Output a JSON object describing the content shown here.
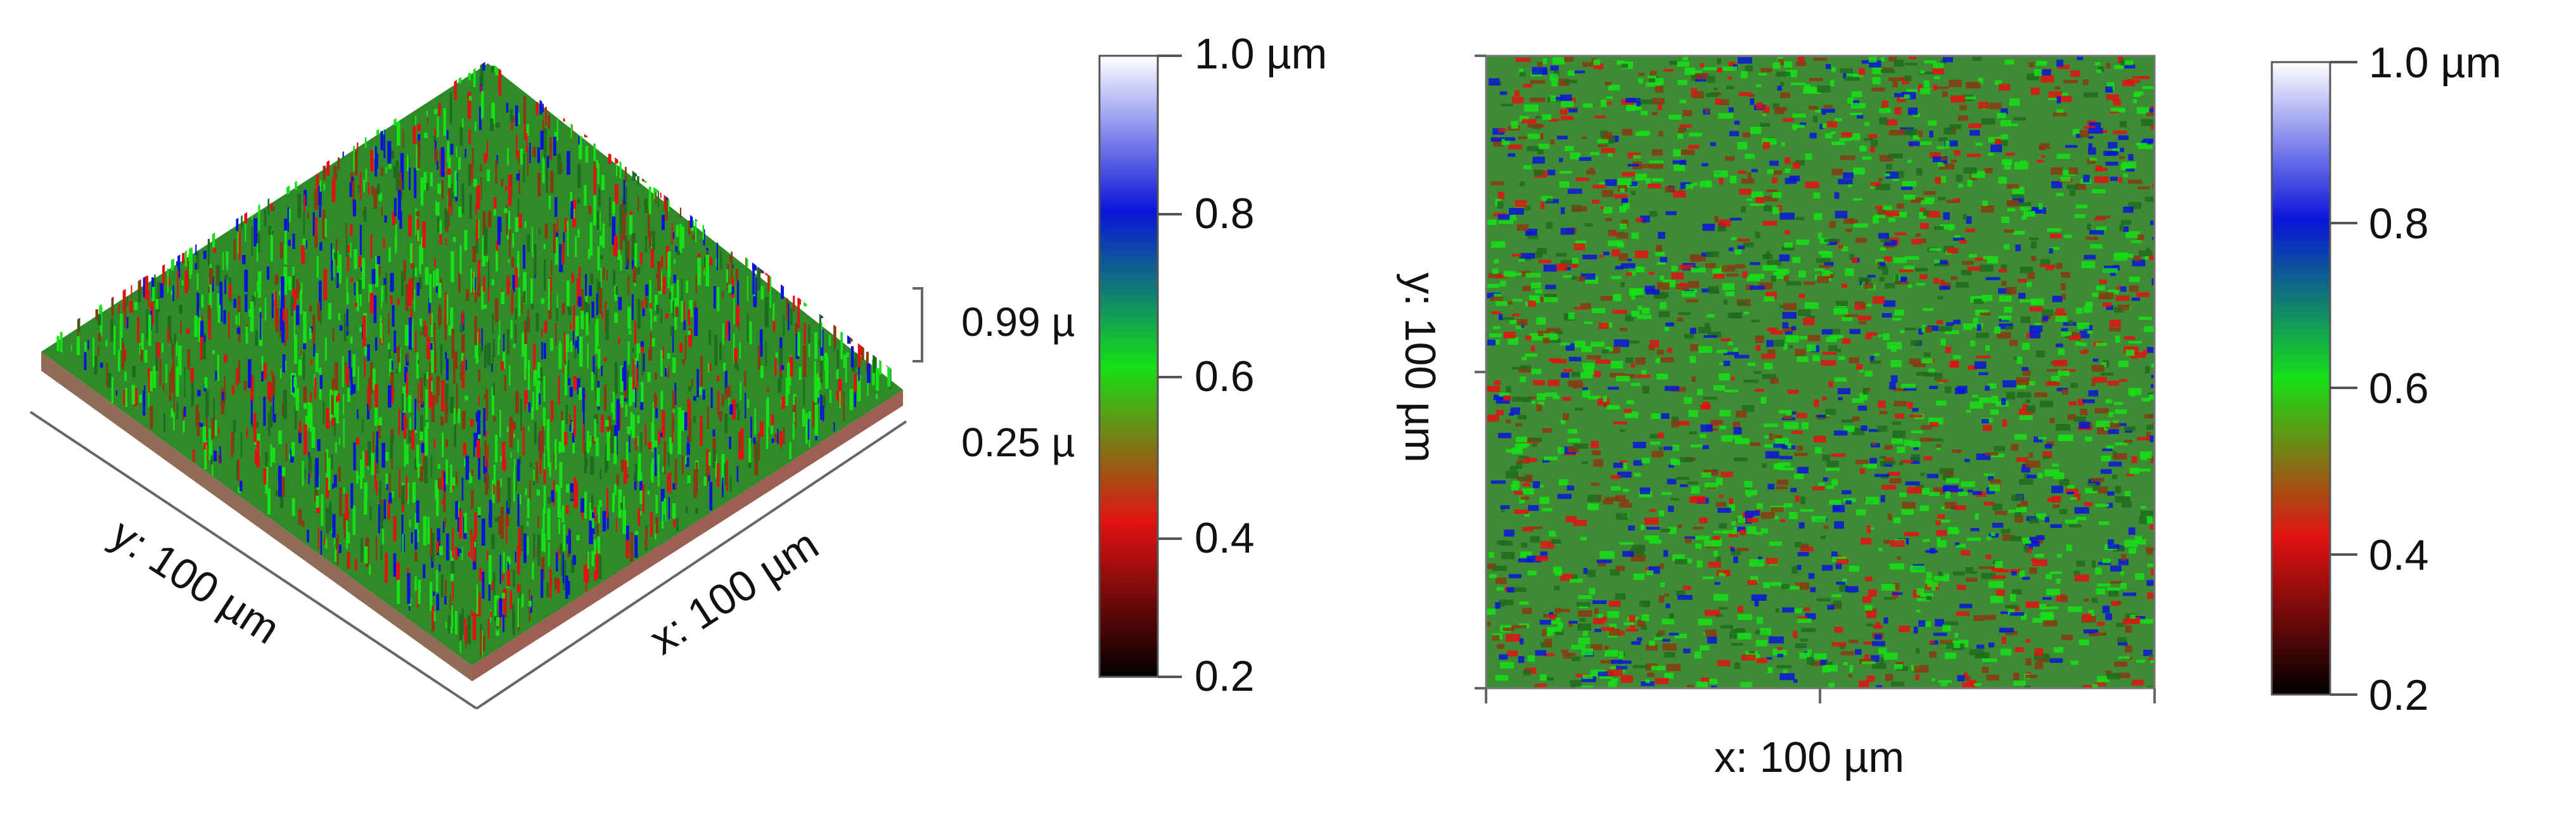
{
  "surface_3d": {
    "y_axis_label": "y: 100 µm",
    "x_axis_label": "x: 100 µm",
    "z_top_label": "0.99 µ",
    "z_bottom_label": "0.25 µ"
  },
  "colorbar_left": {
    "top_label": "1.0 µm",
    "ticks": [
      "0.8",
      "0.6",
      "0.4",
      "0.2"
    ]
  },
  "height_map_2d": {
    "y_axis_label": "y: 100 µm",
    "x_axis_label": "x: 100 µm"
  },
  "colorbar_right": {
    "top_label": "1.0 µm",
    "ticks": [
      "0.8",
      "0.6",
      "0.4",
      "0.2"
    ]
  },
  "colors": {
    "scale_1_0": "#ffffff",
    "scale_0_8": "#0a14d8",
    "scale_0_6": "#16e016",
    "scale_0_4": "#e21212",
    "scale_0_2": "#000000"
  }
}
